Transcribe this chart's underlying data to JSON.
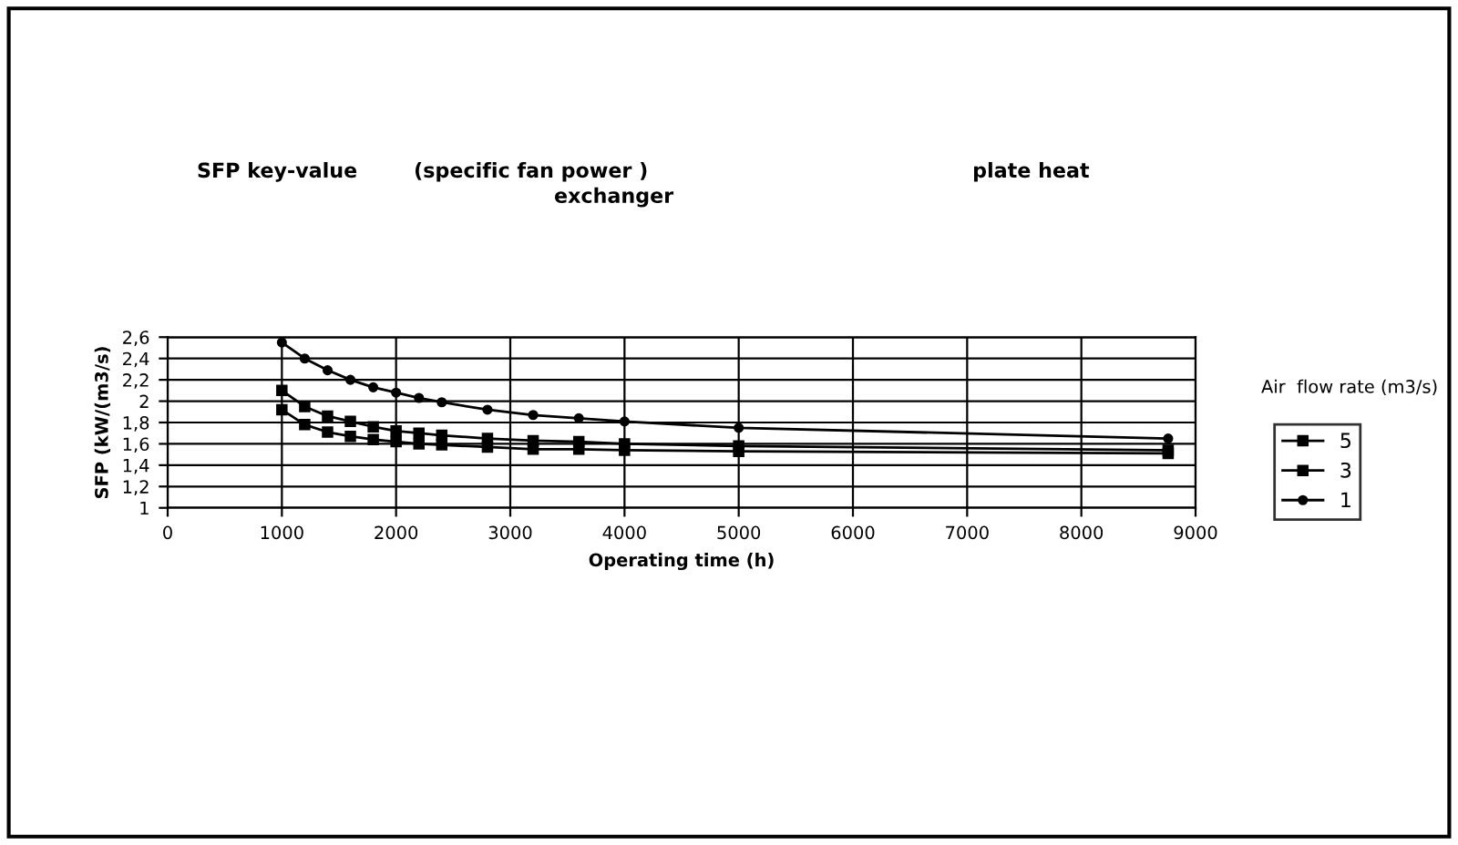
{
  "chart_data": {
    "type": "line",
    "title": "SFP key-value        (specific fan power )                                              plate heat",
    "subtitle": "exchanger",
    "xlabel": "Operating time (h)",
    "ylabel": "SFP (kW/(m3/s)",
    "legend_title": "Air  flow rate (m3/s)",
    "legend": "right",
    "grid": true,
    "x": [
      1000,
      1200,
      1400,
      1600,
      1800,
      2000,
      2200,
      2400,
      2800,
      3200,
      3600,
      4000,
      5000,
      8760
    ],
    "xlim": [
      0,
      9000
    ],
    "xticks": [
      0,
      1000,
      2000,
      3000,
      4000,
      5000,
      6000,
      7000,
      8000,
      9000
    ],
    "ylim": [
      1,
      2.6
    ],
    "yticks": [
      {
        "value": 1,
        "label": "1"
      },
      {
        "value": 1.2,
        "label": "1,2"
      },
      {
        "value": 1.4,
        "label": "1,4"
      },
      {
        "value": 1.6,
        "label": "1,6"
      },
      {
        "value": 1.8,
        "label": "1,8"
      },
      {
        "value": 2,
        "label": "2"
      },
      {
        "value": 2.2,
        "label": "2,2"
      },
      {
        "value": 2.4,
        "label": "2,4"
      },
      {
        "value": 2.6,
        "label": "2,6"
      }
    ],
    "series": [
      {
        "name": "5",
        "color": "#000000",
        "marker": "square",
        "values": [
          1.92,
          1.78,
          1.71,
          1.67,
          1.64,
          1.62,
          1.6,
          1.59,
          1.57,
          1.55,
          1.55,
          1.54,
          1.53,
          1.51
        ]
      },
      {
        "name": "3",
        "color": "#000000",
        "marker": "square",
        "values": [
          2.1,
          1.95,
          1.86,
          1.81,
          1.76,
          1.72,
          1.7,
          1.68,
          1.65,
          1.63,
          1.62,
          1.6,
          1.58,
          1.54
        ]
      },
      {
        "name": "1",
        "color": "#000000",
        "marker": "circle",
        "values": [
          2.55,
          2.4,
          2.29,
          2.2,
          2.13,
          2.08,
          2.03,
          1.99,
          1.92,
          1.87,
          1.84,
          1.81,
          1.75,
          1.65
        ]
      }
    ]
  }
}
